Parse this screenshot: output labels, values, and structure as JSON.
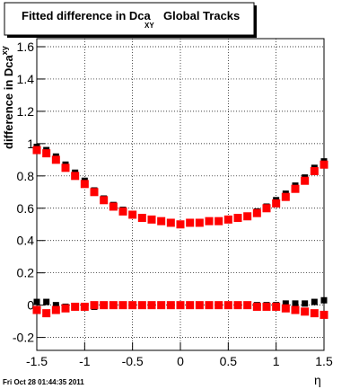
{
  "chart_data": {
    "type": "scatter",
    "title": "Fitted difference in Dca",
    "title_subscript": "XY",
    "title_suffix": "Global Tracks",
    "y_label": "difference in Dca",
    "y_label_subscript": "xy",
    "x_label": "η",
    "timestamp": "Fri Oct 28 01:44:35 2011",
    "x": [
      -1.5,
      -1.4,
      -1.3,
      -1.2,
      -1.1,
      -1.0,
      -0.9,
      -0.8,
      -0.7,
      -0.6,
      -0.5,
      -0.4,
      -0.3,
      -0.2,
      -0.1,
      0,
      0.1,
      0.2,
      0.3,
      0.4,
      0.5,
      0.6,
      0.7,
      0.8,
      0.9,
      1.0,
      1.1,
      1.2,
      1.3,
      1.4,
      1.5
    ],
    "series": [
      {
        "color": "#000000",
        "values": [
          0.98,
          0.96,
          0.92,
          0.87,
          0.82,
          0.77,
          0.71,
          0.66,
          0.62,
          0.59,
          0.56,
          0.54,
          0.53,
          0.52,
          0.51,
          0.5,
          0.51,
          0.51,
          0.52,
          0.52,
          0.53,
          0.54,
          0.55,
          0.58,
          0.61,
          0.65,
          0.69,
          0.74,
          0.79,
          0.85,
          0.89
        ]
      },
      {
        "color": "#000000",
        "values": [
          0.02,
          0.02,
          0.0,
          -0.01,
          -0.01,
          -0.01,
          -0.01,
          0.0,
          0.0,
          0.0,
          0.0,
          0.0,
          0.0,
          0.0,
          0.0,
          0.0,
          0.0,
          0.0,
          0.0,
          0.0,
          0.0,
          0.0,
          0.0,
          0.0,
          0.0,
          0.0,
          0.01,
          0.01,
          0.01,
          0.02,
          0.03
        ]
      },
      {
        "color": "#ff0000",
        "values": [
          0.96,
          0.94,
          0.9,
          0.85,
          0.8,
          0.75,
          0.7,
          0.65,
          0.61,
          0.58,
          0.56,
          0.54,
          0.53,
          0.52,
          0.51,
          0.5,
          0.51,
          0.51,
          0.52,
          0.52,
          0.53,
          0.54,
          0.55,
          0.57,
          0.6,
          0.63,
          0.67,
          0.72,
          0.77,
          0.83,
          0.87
        ]
      },
      {
        "color": "#ff0000",
        "values": [
          -0.03,
          -0.05,
          -0.03,
          -0.02,
          -0.01,
          -0.01,
          0.0,
          0.0,
          0.0,
          0.0,
          0.0,
          0.0,
          0.0,
          0.0,
          0.0,
          0.0,
          0.0,
          0.0,
          0.0,
          0.0,
          0.0,
          0.0,
          0.0,
          -0.01,
          -0.01,
          -0.01,
          -0.02,
          -0.03,
          -0.04,
          -0.05,
          -0.06
        ]
      }
    ],
    "xlim": [
      -1.5,
      1.5
    ],
    "ylim": [
      -0.28,
      1.65
    ],
    "xticks": [
      -1.5,
      -1,
      -0.5,
      0,
      0.5,
      1,
      1.5
    ],
    "yticks": [
      -0.2,
      0,
      0.2,
      0.4,
      0.6,
      0.8,
      1,
      1.2,
      1.4,
      1.6
    ],
    "grid": true
  }
}
